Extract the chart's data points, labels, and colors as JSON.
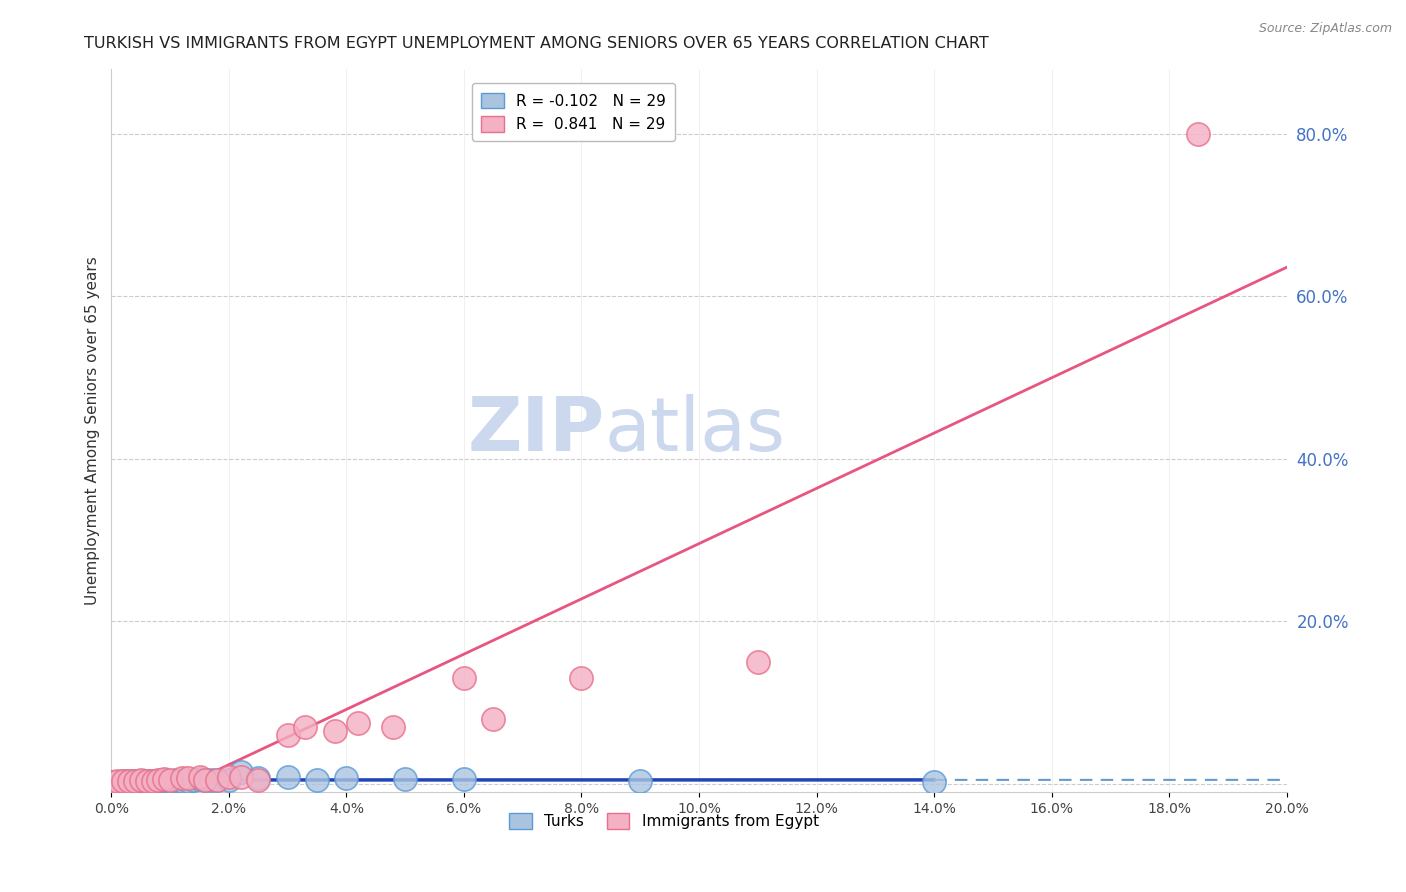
{
  "title": "TURKISH VS IMMIGRANTS FROM EGYPT UNEMPLOYMENT AMONG SENIORS OVER 65 YEARS CORRELATION CHART",
  "source": "Source: ZipAtlas.com",
  "ylabel": "Unemployment Among Seniors over 65 years",
  "xlabel": "",
  "xlim": [
    0.0,
    0.2
  ],
  "ylim": [
    -0.01,
    0.88
  ],
  "xticks": [
    0.0,
    0.02,
    0.04,
    0.06,
    0.08,
    0.1,
    0.12,
    0.14,
    0.16,
    0.18,
    0.2
  ],
  "yticks_right": [
    0.2,
    0.4,
    0.6,
    0.8
  ],
  "turks_x": [
    0.0,
    0.001,
    0.002,
    0.003,
    0.004,
    0.005,
    0.006,
    0.007,
    0.008,
    0.009,
    0.01,
    0.011,
    0.012,
    0.013,
    0.014,
    0.015,
    0.016,
    0.017,
    0.018,
    0.02,
    0.022,
    0.025,
    0.03,
    0.035,
    0.04,
    0.05,
    0.06,
    0.09,
    0.14
  ],
  "turks_y": [
    0.002,
    0.002,
    0.003,
    0.003,
    0.003,
    0.003,
    0.003,
    0.004,
    0.004,
    0.005,
    0.004,
    0.005,
    0.004,
    0.004,
    0.005,
    0.006,
    0.005,
    0.005,
    0.005,
    0.005,
    0.015,
    0.007,
    0.008,
    0.005,
    0.007,
    0.006,
    0.006,
    0.003,
    0.002
  ],
  "egypt_x": [
    0.0,
    0.001,
    0.002,
    0.003,
    0.004,
    0.005,
    0.006,
    0.007,
    0.008,
    0.009,
    0.01,
    0.012,
    0.013,
    0.015,
    0.016,
    0.018,
    0.02,
    0.022,
    0.025,
    0.03,
    0.033,
    0.038,
    0.042,
    0.048,
    0.06,
    0.065,
    0.08,
    0.11,
    0.185
  ],
  "egypt_y": [
    0.002,
    0.003,
    0.003,
    0.004,
    0.004,
    0.005,
    0.004,
    0.004,
    0.005,
    0.006,
    0.005,
    0.007,
    0.007,
    0.008,
    0.005,
    0.005,
    0.008,
    0.008,
    0.005,
    0.06,
    0.07,
    0.065,
    0.075,
    0.07,
    0.13,
    0.08,
    0.13,
    0.15,
    0.8
  ],
  "turks_color": "#aac4e0",
  "turks_edge_color": "#5b9bd5",
  "egypt_color": "#f4b0c4",
  "egypt_edge_color": "#e8708a",
  "turks_R": -0.102,
  "turks_N": 29,
  "egypt_R": 0.841,
  "egypt_N": 29,
  "line_turks_solid_color": "#2244bb",
  "line_turks_dash_color": "#6699cc",
  "line_egypt_color": "#e85580",
  "watermark_zip": "ZIP",
  "watermark_atlas": "atlas",
  "watermark_color": "#ccd8ee",
  "background_color": "#ffffff",
  "grid_color": "#cccccc",
  "right_axis_color": "#4472c4"
}
